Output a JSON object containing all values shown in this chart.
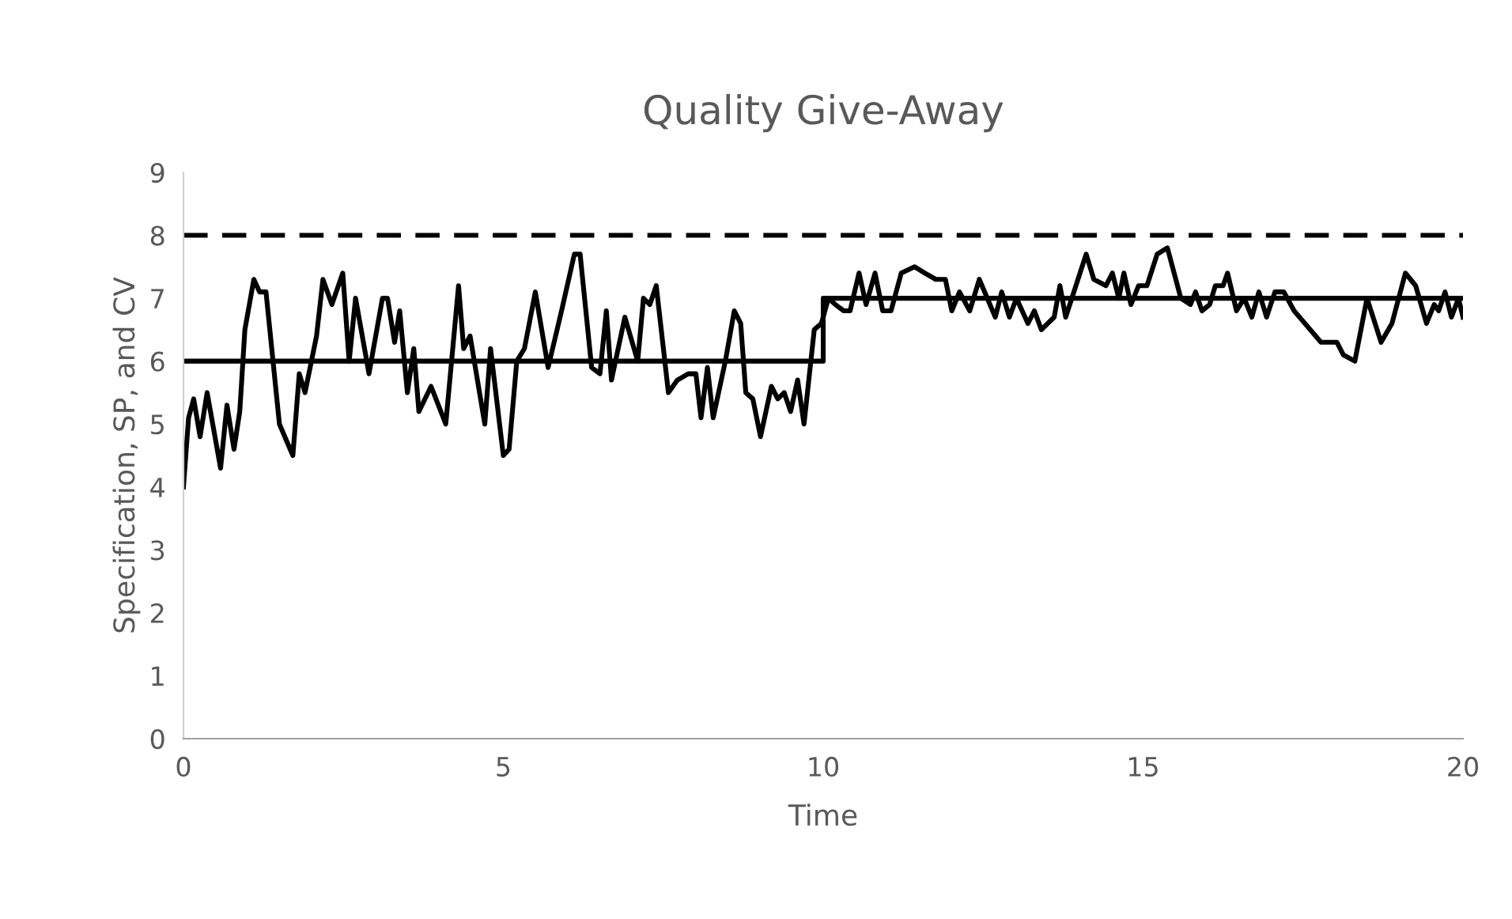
{
  "chart_data": {
    "type": "line",
    "title": "Quality Give-Away",
    "xlabel": "Time",
    "ylabel": "Specification, SP, and CV",
    "xlim": [
      0,
      20
    ],
    "xticks": [
      0,
      5,
      10,
      15,
      20
    ],
    "ylim": [
      0,
      9
    ],
    "yticks": [
      0,
      1,
      2,
      3,
      4,
      5,
      6,
      7,
      8,
      9
    ],
    "grid": false,
    "legend": false,
    "marker": "none",
    "line_style": "solid",
    "ref_lines": [
      {
        "axis": "y",
        "value": 8,
        "label": null,
        "color": "#000000",
        "line_style": "dashed"
      }
    ],
    "series": [
      {
        "color": "#000000",
        "x": [
          0,
          0.08,
          0.16,
          0.26,
          0.37,
          0.58,
          0.68,
          0.79,
          0.88,
          0.96,
          1.1,
          1.19,
          1.29,
          1.5,
          1.71,
          1.81,
          1.9,
          2.08,
          2.18,
          2.32,
          2.49,
          2.59,
          2.69,
          2.9,
          3.11,
          3.19,
          3.3,
          3.38,
          3.5,
          3.6,
          3.68,
          3.87,
          4.1,
          4.3,
          4.38,
          4.48,
          4.71,
          4.8,
          5.0,
          5.09,
          5.21,
          5.33,
          5.5,
          5.7,
          5.91,
          6.11,
          6.2,
          6.38,
          6.51,
          6.61,
          6.69,
          6.9,
          7.1,
          7.19,
          7.29,
          7.39,
          7.58,
          7.72,
          7.89,
          8.01,
          8.09,
          8.19,
          8.28,
          8.47,
          8.61,
          8.71,
          8.79,
          8.9,
          9.02,
          9.19,
          9.29,
          9.39,
          9.49,
          9.6,
          9.7,
          9.86,
          9.97,
          10.0,
          10.08,
          10.19,
          10.32,
          10.42,
          10.56,
          10.67,
          10.81,
          10.93,
          11.06,
          11.22,
          11.43,
          11.59,
          11.76,
          11.91,
          12.01,
          12.13,
          12.29,
          12.44,
          12.69,
          12.79,
          12.91,
          13.02,
          13.2,
          13.3,
          13.41,
          13.61,
          13.7,
          13.79,
          14.11,
          14.23,
          14.42,
          14.52,
          14.62,
          14.7,
          14.81,
          14.93,
          15.06,
          15.22,
          15.38,
          15.59,
          15.74,
          15.82,
          15.92,
          16.04,
          16.13,
          16.25,
          16.32,
          16.46,
          16.58,
          16.7,
          16.81,
          16.93,
          17.06,
          17.2,
          17.36,
          17.53,
          17.78,
          17.9,
          18.03,
          18.13,
          18.31,
          18.5,
          18.72,
          18.89,
          19.1,
          19.26,
          19.43,
          19.55,
          19.62,
          19.72,
          19.82,
          19.93,
          20.0
        ],
        "values": [
          4.0,
          5.1,
          5.4,
          4.8,
          5.5,
          4.3,
          5.3,
          4.6,
          5.2,
          6.5,
          7.3,
          7.1,
          7.1,
          5.0,
          4.5,
          5.8,
          5.5,
          6.4,
          7.3,
          6.9,
          7.4,
          6.0,
          7.0,
          5.8,
          7.0,
          7.0,
          6.3,
          6.8,
          5.5,
          6.2,
          5.2,
          5.6,
          5.0,
          7.2,
          6.2,
          6.4,
          5.0,
          6.2,
          4.5,
          4.6,
          6.0,
          6.2,
          7.1,
          5.9,
          6.8,
          7.7,
          7.7,
          5.9,
          5.8,
          6.8,
          5.7,
          6.7,
          6.0,
          7.0,
          6.9,
          7.2,
          5.5,
          5.7,
          5.8,
          5.8,
          5.1,
          5.9,
          5.1,
          6.0,
          6.8,
          6.6,
          5.5,
          5.4,
          4.8,
          5.6,
          5.4,
          5.5,
          5.2,
          5.7,
          5.0,
          6.5,
          6.6,
          6.7,
          7.0,
          6.9,
          6.8,
          6.8,
          7.4,
          6.9,
          7.4,
          6.8,
          6.8,
          7.4,
          7.5,
          7.4,
          7.3,
          7.3,
          6.8,
          7.1,
          6.8,
          7.3,
          6.7,
          7.1,
          6.7,
          7.0,
          6.6,
          6.8,
          6.5,
          6.7,
          7.2,
          6.7,
          7.7,
          7.3,
          7.2,
          7.4,
          7.0,
          7.4,
          6.9,
          7.2,
          7.2,
          7.7,
          7.8,
          7.0,
          6.9,
          7.1,
          6.8,
          6.9,
          7.2,
          7.2,
          7.4,
          6.8,
          7.0,
          6.7,
          7.1,
          6.7,
          7.1,
          7.1,
          6.8,
          6.6,
          6.3,
          6.3,
          6.3,
          6.1,
          6.0,
          7.0,
          6.3,
          6.6,
          7.4,
          7.2,
          6.6,
          6.9,
          6.8,
          7.1,
          6.7,
          7.0,
          6.7
        ]
      },
      {
        "color": "#000000",
        "x": [
          0,
          10,
          10,
          20
        ],
        "values": [
          6,
          6,
          7,
          7
        ]
      }
    ]
  }
}
